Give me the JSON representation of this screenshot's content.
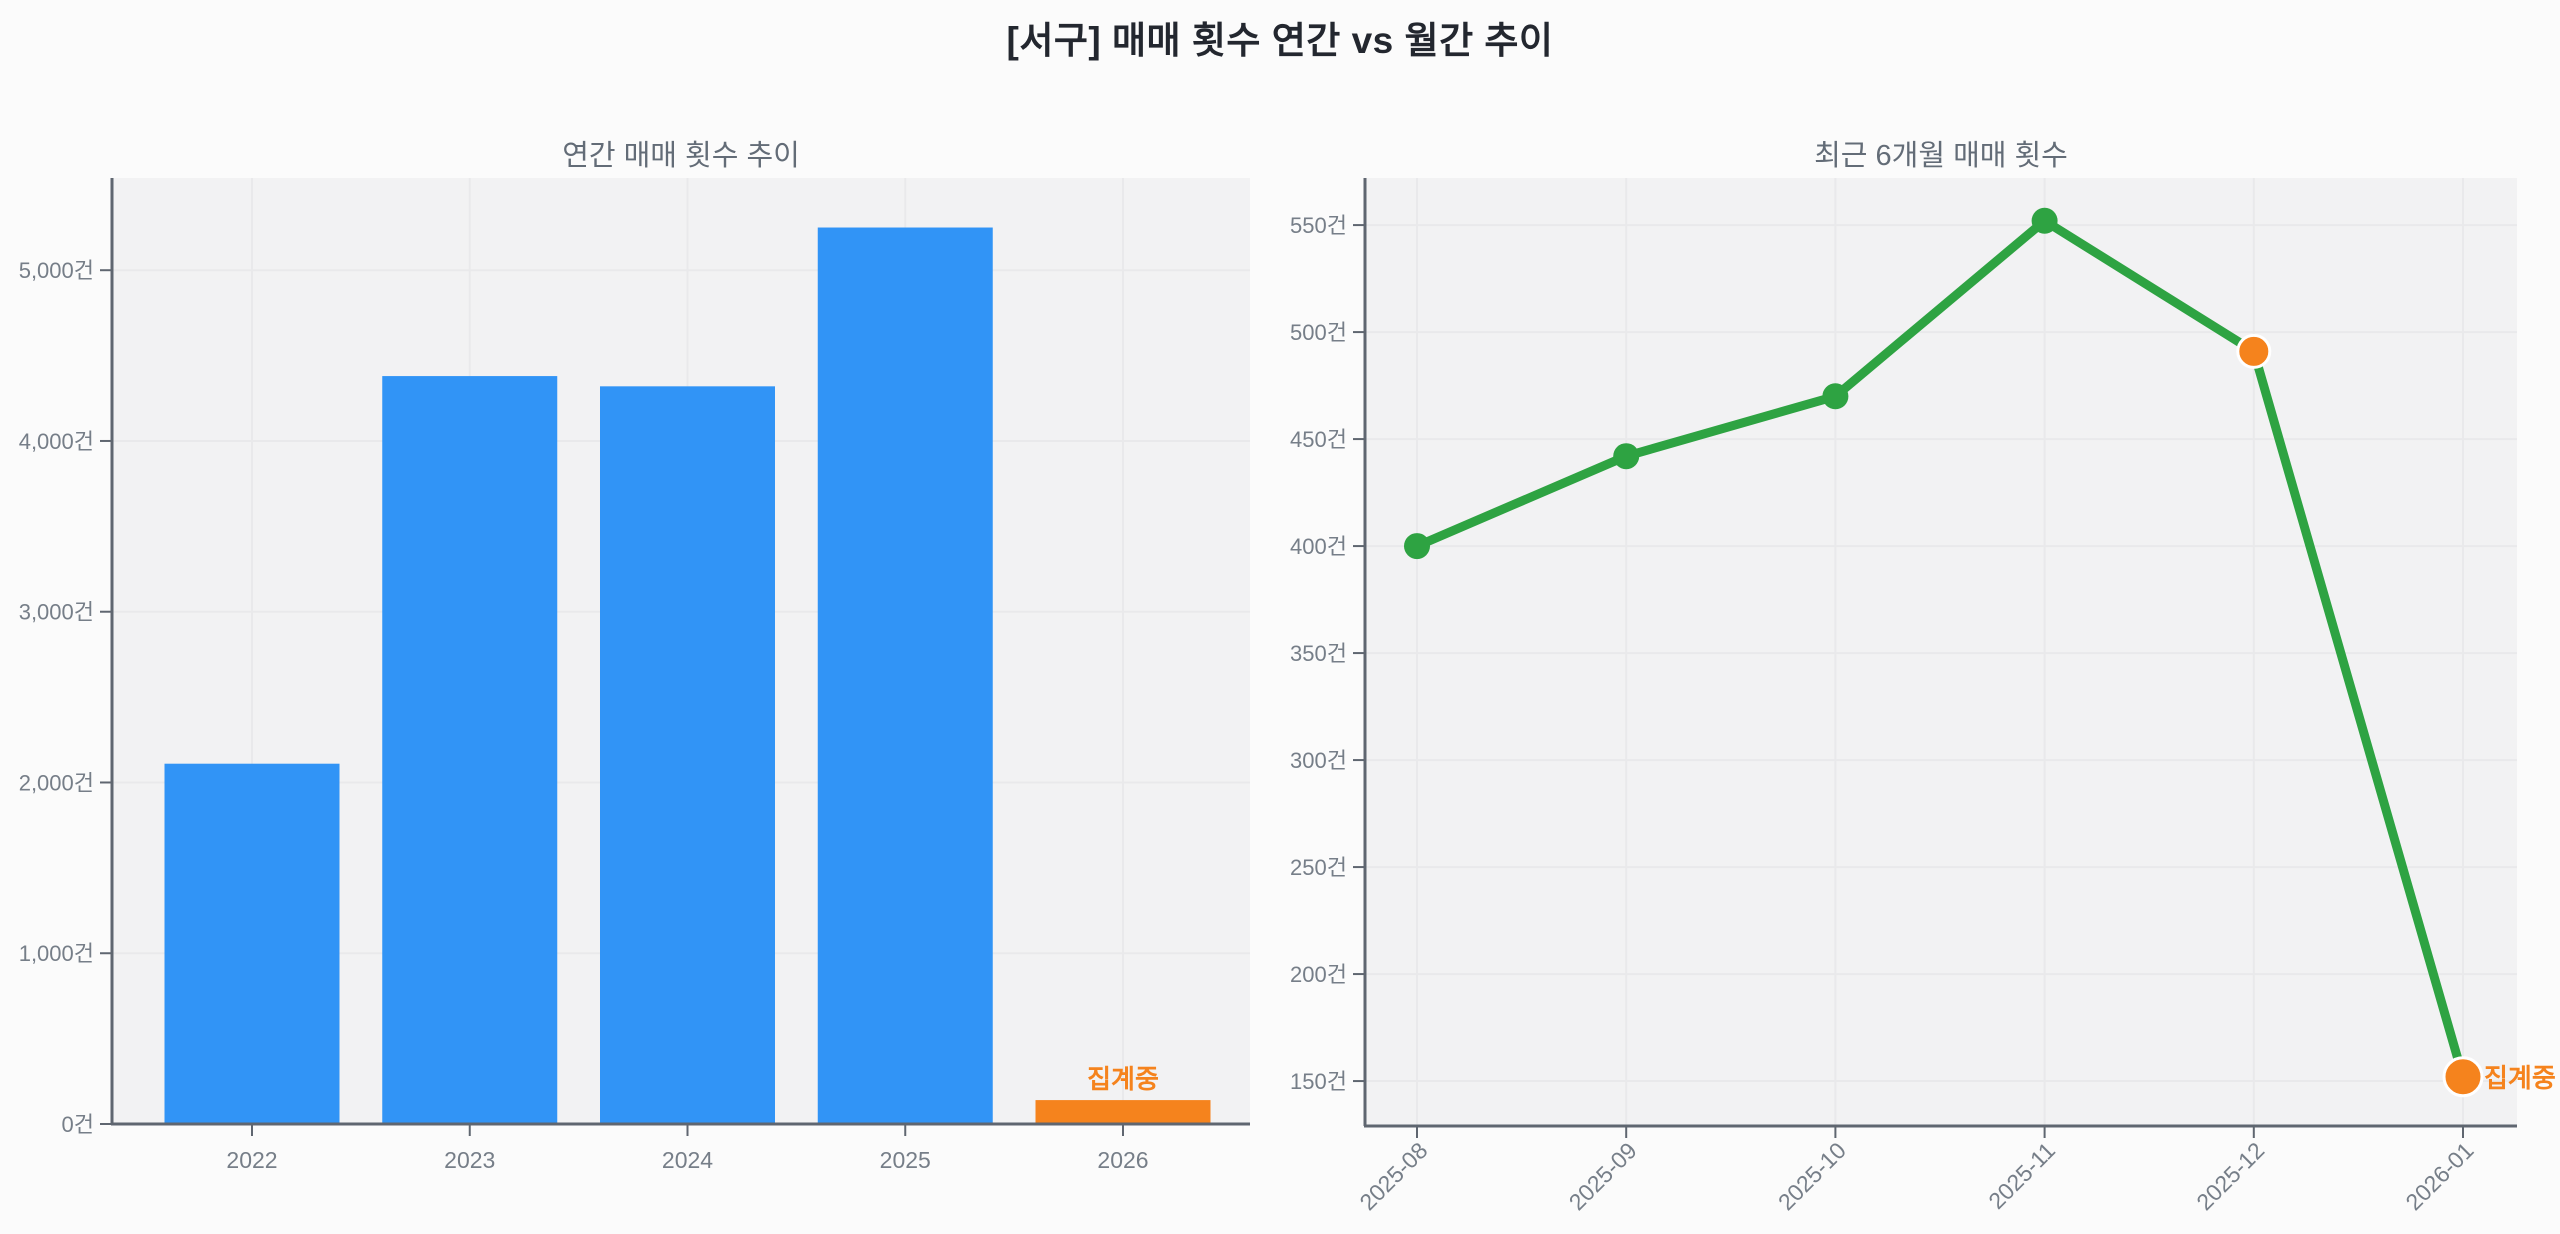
{
  "page_title": "[서구] 매매 횟수 연간 vs 월간 추이",
  "annotation_label": "집계중",
  "colors": {
    "bar_blue": "#3194F6",
    "accent_orange": "#F5831D",
    "line_green": "#2EA342",
    "marker_edge": "#FFFFFF",
    "title_text": "#23272F",
    "subtitle_text": "#636C77",
    "axis_text": "#767E88",
    "spine": "#5F6670",
    "grid": "#E9E9EB",
    "plot_bg": "#F2F2F3",
    "figure_bg": "#FBFBFB"
  },
  "chart_data": [
    {
      "type": "bar",
      "title": "연간 매매 횟수 추이",
      "categories": [
        "2022",
        "2023",
        "2024",
        "2025",
        "2026"
      ],
      "values": [
        2110,
        4380,
        4320,
        5250,
        140
      ],
      "bar_colors": [
        "#3194F6",
        "#3194F6",
        "#3194F6",
        "#3194F6",
        "#F5831D"
      ],
      "annotation": "집계중",
      "annotation_index": 4,
      "yticks": [
        0,
        1000,
        2000,
        3000,
        4000,
        5000
      ],
      "ytick_labels": [
        "0건",
        "1,000건",
        "2,000건",
        "3,000건",
        "4,000건",
        "5,000건"
      ],
      "ylim": [
        0,
        5540
      ],
      "grid": true
    },
    {
      "type": "line",
      "title": "최근 6개월 매매 횟수",
      "x": [
        "2025-08",
        "2025-09",
        "2025-10",
        "2025-11",
        "2025-12",
        "2026-01"
      ],
      "values": [
        400,
        442,
        470,
        552,
        491,
        152
      ],
      "point_colors": [
        "#2EA342",
        "#2EA342",
        "#2EA342",
        "#2EA342",
        "#F5831D",
        "#F5831D"
      ],
      "annotation": "집계중",
      "annotation_index": 5,
      "yticks": [
        150,
        200,
        250,
        300,
        350,
        400,
        450,
        500,
        550
      ],
      "ytick_labels": [
        "150건",
        "200건",
        "250건",
        "300건",
        "350건",
        "400건",
        "450건",
        "500건",
        "550건"
      ],
      "ylim": [
        129,
        572
      ],
      "grid": true,
      "x_tick_rotation": 45
    }
  ]
}
